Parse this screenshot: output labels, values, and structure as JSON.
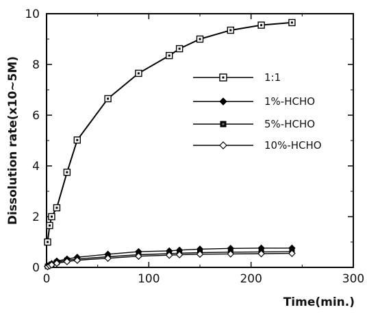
{
  "chart_data": {
    "type": "line",
    "xlabel": "Time(min.)",
    "ylabel": "Dissolution rate(x10~5M)",
    "xlim": [
      0,
      300
    ],
    "ylim": [
      0,
      10
    ],
    "xticks": [
      "0",
      "100",
      "200",
      "300"
    ],
    "yticks": [
      "0",
      "2",
      "4",
      "6",
      "8",
      "10"
    ],
    "grid": false,
    "legend_position": "right-middle",
    "series": [
      {
        "name": "1:1",
        "marker": "square-dot",
        "x": [
          1,
          3,
          5,
          10,
          20,
          30,
          60,
          90,
          120,
          130,
          150,
          180,
          210,
          240
        ],
        "y": [
          1.0,
          1.65,
          2.0,
          2.35,
          3.75,
          5.02,
          6.65,
          7.65,
          8.35,
          8.62,
          9.0,
          9.35,
          9.55,
          9.65
        ]
      },
      {
        "name": "1%-HCHO",
        "marker": "diamond-filled",
        "x": [
          1,
          3,
          5,
          10,
          20,
          30,
          60,
          90,
          120,
          130,
          150,
          180,
          210,
          240
        ],
        "y": [
          0.05,
          0.1,
          0.15,
          0.25,
          0.33,
          0.4,
          0.52,
          0.62,
          0.65,
          0.68,
          0.72,
          0.75,
          0.76,
          0.76
        ]
      },
      {
        "name": "5%-HCHO",
        "marker": "square-filled",
        "x": [
          1,
          3,
          5,
          10,
          20,
          30,
          60,
          90,
          120,
          130,
          150,
          180,
          210,
          240
        ],
        "y": [
          0.04,
          0.08,
          0.12,
          0.2,
          0.28,
          0.33,
          0.42,
          0.5,
          0.54,
          0.56,
          0.58,
          0.6,
          0.61,
          0.62
        ]
      },
      {
        "name": "10%-HCHO",
        "marker": "diamond-open",
        "x": [
          1,
          3,
          5,
          10,
          20,
          30,
          60,
          90,
          120,
          130,
          150,
          180,
          210,
          240
        ],
        "y": [
          0.03,
          0.07,
          0.1,
          0.16,
          0.23,
          0.28,
          0.36,
          0.44,
          0.48,
          0.5,
          0.52,
          0.53,
          0.54,
          0.55
        ]
      }
    ]
  }
}
